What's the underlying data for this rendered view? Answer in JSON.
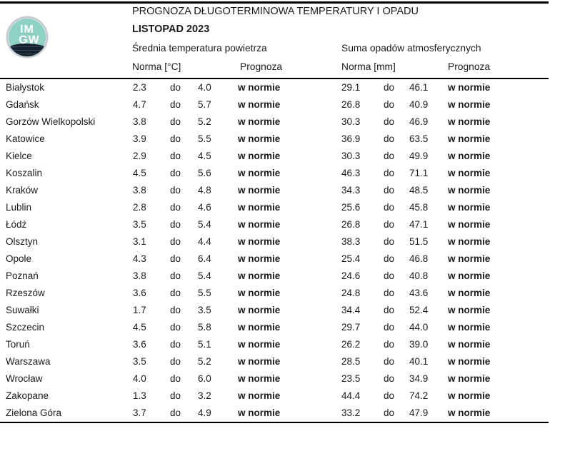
{
  "logo": {
    "text_top": "IM",
    "text_bottom": "GW",
    "teal_color": "#8ed1c5",
    "navy_color": "#16222e"
  },
  "header": {
    "title": "PROGNOZA DŁUGOTERMINOWA TEMPERATURY I OPADU",
    "month": "LISTOPAD 2023"
  },
  "table": {
    "group_headers": {
      "temperature": "Średnia temperatura powietrza",
      "precipitation": "Suma opadów atmosferycznych"
    },
    "column_headers": {
      "temp_norm": "Norma [°C]",
      "temp_forecast": "Prognoza",
      "precip_norm": "Norma [mm]",
      "precip_forecast": "Prognoza"
    },
    "range_separator": "do",
    "rows": [
      {
        "city": "Białystok",
        "temp_low": "2.3",
        "temp_high": "4.0",
        "temp_forecast": "w normie",
        "precip_low": "29.1",
        "precip_high": "46.1",
        "precip_forecast": "w normie"
      },
      {
        "city": "Gdańsk",
        "temp_low": "4.7",
        "temp_high": "5.7",
        "temp_forecast": "w normie",
        "precip_low": "26.8",
        "precip_high": "40.9",
        "precip_forecast": "w normie"
      },
      {
        "city": "Gorzów Wielkopolski",
        "temp_low": "3.8",
        "temp_high": "5.2",
        "temp_forecast": "w normie",
        "precip_low": "30.3",
        "precip_high": "46.9",
        "precip_forecast": "w normie"
      },
      {
        "city": "Katowice",
        "temp_low": "3.9",
        "temp_high": "5.5",
        "temp_forecast": "w normie",
        "precip_low": "36.9",
        "precip_high": "63.5",
        "precip_forecast": "w normie"
      },
      {
        "city": "Kielce",
        "temp_low": "2.9",
        "temp_high": "4.5",
        "temp_forecast": "w normie",
        "precip_low": "30.3",
        "precip_high": "49.9",
        "precip_forecast": "w normie"
      },
      {
        "city": "Koszalin",
        "temp_low": "4.5",
        "temp_high": "5.6",
        "temp_forecast": "w normie",
        "precip_low": "46.3",
        "precip_high": "71.1",
        "precip_forecast": "w normie"
      },
      {
        "city": "Kraków",
        "temp_low": "3.8",
        "temp_high": "4.8",
        "temp_forecast": "w normie",
        "precip_low": "34.3",
        "precip_high": "48.5",
        "precip_forecast": "w normie"
      },
      {
        "city": "Lublin",
        "temp_low": "2.8",
        "temp_high": "4.6",
        "temp_forecast": "w normie",
        "precip_low": "25.6",
        "precip_high": "45.8",
        "precip_forecast": "w normie"
      },
      {
        "city": "Łódź",
        "temp_low": "3.5",
        "temp_high": "5.4",
        "temp_forecast": "w normie",
        "precip_low": "26.8",
        "precip_high": "47.1",
        "precip_forecast": "w normie"
      },
      {
        "city": "Olsztyn",
        "temp_low": "3.1",
        "temp_high": "4.4",
        "temp_forecast": "w normie",
        "precip_low": "38.3",
        "precip_high": "51.5",
        "precip_forecast": "w normie"
      },
      {
        "city": "Opole",
        "temp_low": "4.3",
        "temp_high": "6.4",
        "temp_forecast": "w normie",
        "precip_low": "25.4",
        "precip_high": "46.8",
        "precip_forecast": "w normie"
      },
      {
        "city": "Poznań",
        "temp_low": "3.8",
        "temp_high": "5.4",
        "temp_forecast": "w normie",
        "precip_low": "24.6",
        "precip_high": "40.8",
        "precip_forecast": "w normie"
      },
      {
        "city": "Rzeszów",
        "temp_low": "3.6",
        "temp_high": "5.5",
        "temp_forecast": "w normie",
        "precip_low": "24.8",
        "precip_high": "43.6",
        "precip_forecast": "w normie"
      },
      {
        "city": "Suwałki",
        "temp_low": "1.7",
        "temp_high": "3.5",
        "temp_forecast": "w normie",
        "precip_low": "34.4",
        "precip_high": "52.4",
        "precip_forecast": "w normie"
      },
      {
        "city": "Szczecin",
        "temp_low": "4.5",
        "temp_high": "5.8",
        "temp_forecast": "w normie",
        "precip_low": "29.7",
        "precip_high": "44.0",
        "precip_forecast": "w normie"
      },
      {
        "city": "Toruń",
        "temp_low": "3.6",
        "temp_high": "5.1",
        "temp_forecast": "w normie",
        "precip_low": "26.2",
        "precip_high": "39.0",
        "precip_forecast": "w normie"
      },
      {
        "city": "Warszawa",
        "temp_low": "3.5",
        "temp_high": "5.2",
        "temp_forecast": "w normie",
        "precip_low": "28.5",
        "precip_high": "40.1",
        "precip_forecast": "w normie"
      },
      {
        "city": "Wrocław",
        "temp_low": "4.0",
        "temp_high": "6.0",
        "temp_forecast": "w normie",
        "precip_low": "23.5",
        "precip_high": "34.9",
        "precip_forecast": "w normie"
      },
      {
        "city": "Zakopane",
        "temp_low": "1.3",
        "temp_high": "3.2",
        "temp_forecast": "w normie",
        "precip_low": "44.4",
        "precip_high": "74.2",
        "precip_forecast": "w normie"
      },
      {
        "city": "Zielona Góra",
        "temp_low": "3.7",
        "temp_high": "4.9",
        "temp_forecast": "w normie",
        "precip_low": "33.2",
        "precip_high": "47.9",
        "precip_forecast": "w normie"
      }
    ]
  }
}
